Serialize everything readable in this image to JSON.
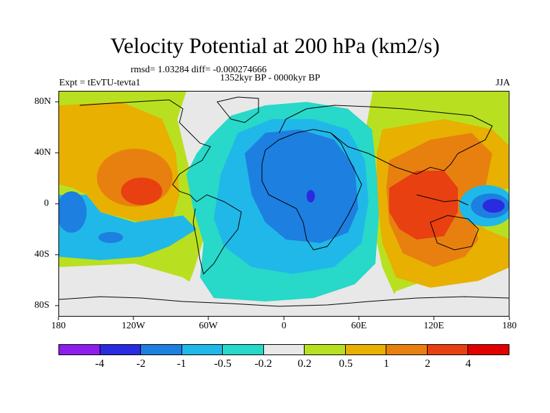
{
  "title": "Velocity Potential at 200 hPa (km2/s)",
  "stats": "rmsd= 1.03284 diff= -0.000274666",
  "period": "1352kyr BP - 0000kyr BP",
  "experiment": "Expt = tEvTU-tevta1",
  "season": "JJA",
  "y_axis_labels": [
    "80N",
    "40N",
    "0",
    "40S",
    "80S"
  ],
  "x_axis_labels": [
    "180",
    "120W",
    "60W",
    "0",
    "60E",
    "120E",
    "180"
  ],
  "colorbar": {
    "colors": [
      "#8c1eec",
      "#2a2ae0",
      "#1d7fe0",
      "#20b8e8",
      "#28d8c8",
      "#e8e8e8",
      "#b8e020",
      "#e8b000",
      "#e88010",
      "#e84010",
      "#e00000"
    ],
    "labels": [
      "-4",
      "-2",
      "-1",
      "-0.5",
      "-0.2",
      "0.2",
      "0.5",
      "1",
      "2",
      "4"
    ]
  },
  "field_colors": {
    "yellow_green": "#b8e020",
    "orange_yellow": "#e8b000",
    "orange": "#e88010",
    "red_orange": "#e84010",
    "cyan_green": "#28d8c8",
    "light_blue": "#20b8e8",
    "blue": "#1d7fe0",
    "dark_blue": "#2a2ae0",
    "neutral": "#e8e8e8"
  }
}
